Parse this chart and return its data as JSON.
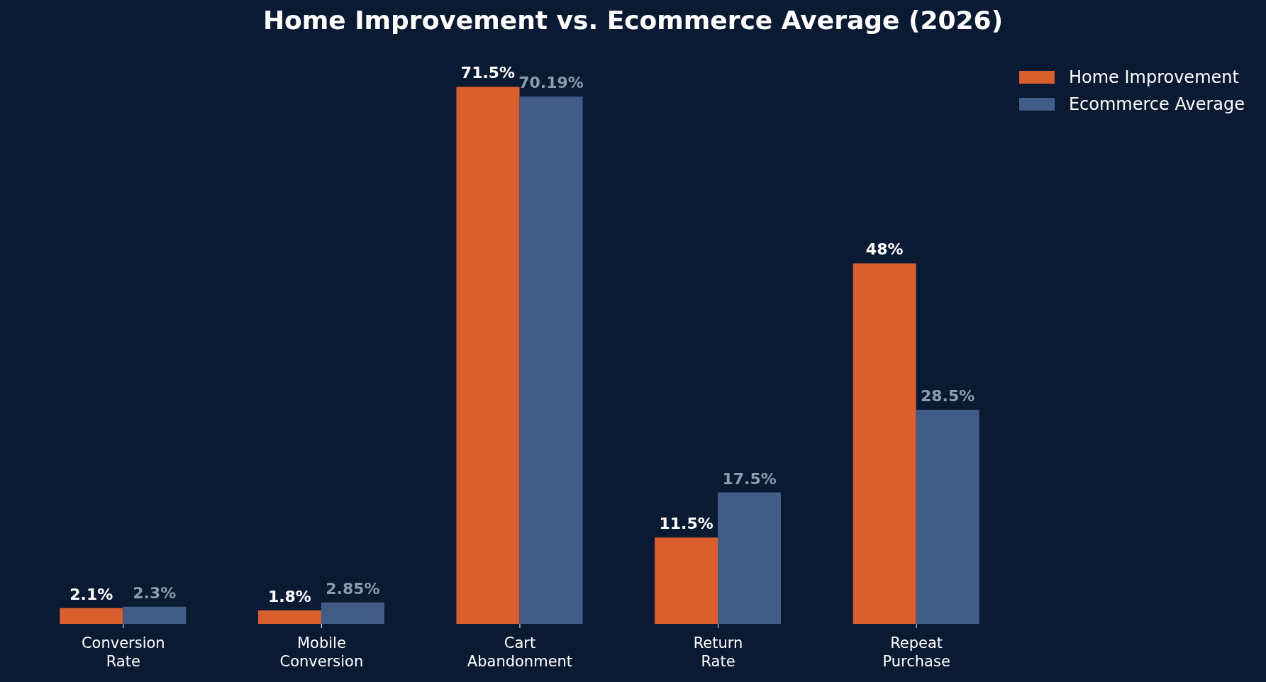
{
  "chart_data": {
    "type": "bar",
    "title": "Home Improvement vs. Ecommerce Average (2026)",
    "categories": [
      "Conversion\nRate",
      "Mobile\nConversion",
      "Cart\nAbandonment",
      "Return\nRate",
      "Repeat\nPurchase"
    ],
    "series": [
      {
        "name": "Home Improvement",
        "color": "#d95f2e",
        "values": [
          2.1,
          1.8,
          71.5,
          11.5,
          48
        ],
        "value_labels": [
          "2.1%",
          "1.8%",
          "71.5%",
          "11.5%",
          "48%"
        ]
      },
      {
        "name": "Ecommerce Average",
        "color": "#415c87",
        "values": [
          2.3,
          2.85,
          70.19,
          17.5,
          28.5
        ],
        "value_labels": [
          "2.3%",
          "2.85%",
          "70.19%",
          "17.5%",
          "28.5%"
        ]
      }
    ],
    "legend": "top right",
    "grid": false
  }
}
